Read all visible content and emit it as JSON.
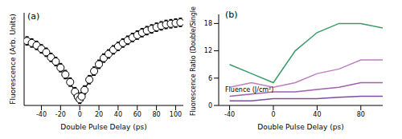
{
  "chart_data": [
    {
      "type": "scatter",
      "title": "(a)",
      "x_label": "Double Pulse Delay (ps)",
      "y_label": "Fluorescence (Arb. Units)",
      "x": [
        -55,
        -50,
        -45,
        -40,
        -35,
        -30,
        -25,
        -20,
        -15,
        -10,
        -5,
        -2,
        0,
        2,
        5,
        10,
        15,
        20,
        25,
        30,
        35,
        40,
        45,
        50,
        55,
        60,
        65,
        70,
        75,
        80,
        85,
        90,
        95,
        100,
        105
      ],
      "series": [
        {
          "type": "scatter",
          "color": "#000000",
          "marker": "circle",
          "values": [
            0.238,
            0.232,
            0.225,
            0.215,
            0.205,
            0.19,
            0.178,
            0.16,
            0.14,
            0.118,
            0.09,
            0.075,
            0.068,
            0.076,
            0.095,
            0.125,
            0.15,
            0.17,
            0.188,
            0.2,
            0.212,
            0.222,
            0.232,
            0.24,
            0.248,
            0.255,
            0.262,
            0.268,
            0.273,
            0.278,
            0.282,
            0.286,
            0.288,
            0.29,
            0.292
          ],
          "errors": [
            0.012,
            0.012,
            0.012,
            0.012,
            0.012,
            0.012,
            0.012,
            0.012,
            0.012,
            0.012,
            0.012,
            0.012,
            0.012,
            0.012,
            0.012,
            0.012,
            0.012,
            0.012,
            0.012,
            0.012,
            0.012,
            0.012,
            0.012,
            0.012,
            0.012,
            0.012,
            0.012,
            0.012,
            0.012,
            0.012,
            0.012,
            0.012,
            0.012,
            0.012,
            0.012
          ]
        },
        {
          "type": "line",
          "color": "#000000",
          "line_style": "solid",
          "values": [
            0.24,
            0.233,
            0.225,
            0.216,
            0.205,
            0.192,
            0.177,
            0.16,
            0.14,
            0.117,
            0.09,
            0.074,
            0.066,
            0.075,
            0.094,
            0.124,
            0.149,
            0.169,
            0.186,
            0.2,
            0.212,
            0.223,
            0.232,
            0.24,
            0.248,
            0.255,
            0.261,
            0.267,
            0.272,
            0.277,
            0.281,
            0.285,
            0.288,
            0.291,
            0.293
          ]
        }
      ],
      "xlim": [
        -58,
        108
      ],
      "xticks": [
        -40,
        -20,
        0,
        20,
        40,
        60,
        80,
        100
      ],
      "ylim": [
        0.05,
        0.32
      ],
      "yticks": [
        0.1,
        0.2,
        0.3
      ],
      "tick_labels": "x"
    },
    {
      "type": "line",
      "title": "(b)",
      "x_label": "Double Pulse Delay (ps)",
      "y_label": "Fluorescence Ratio (Double/Single)",
      "annotation": "Fluence (J/cm²)",
      "x": [
        -40,
        -20,
        0,
        20,
        40,
        60,
        80,
        100
      ],
      "series": [
        {
          "color": "#7b4f9e",
          "values": [
            1,
            1,
            1.5,
            1.5,
            1.5,
            1.8,
            2,
            2
          ]
        },
        {
          "color": "#a05fae",
          "values": [
            2,
            2.5,
            3,
            3,
            3.5,
            4,
            5,
            5
          ]
        },
        {
          "color": "#c07cc0",
          "values": [
            4,
            5,
            4,
            5,
            7,
            8,
            10,
            10
          ]
        },
        {
          "color": "#3a9a6a",
          "values": [
            9,
            7,
            5,
            12,
            16,
            18,
            18,
            17
          ]
        }
      ],
      "xlim": [
        -50,
        100
      ],
      "xticks": [
        -40,
        0,
        40,
        80
      ],
      "ylim": [
        0,
        20
      ],
      "yticks": [
        0,
        6,
        12,
        18
      ]
    }
  ]
}
